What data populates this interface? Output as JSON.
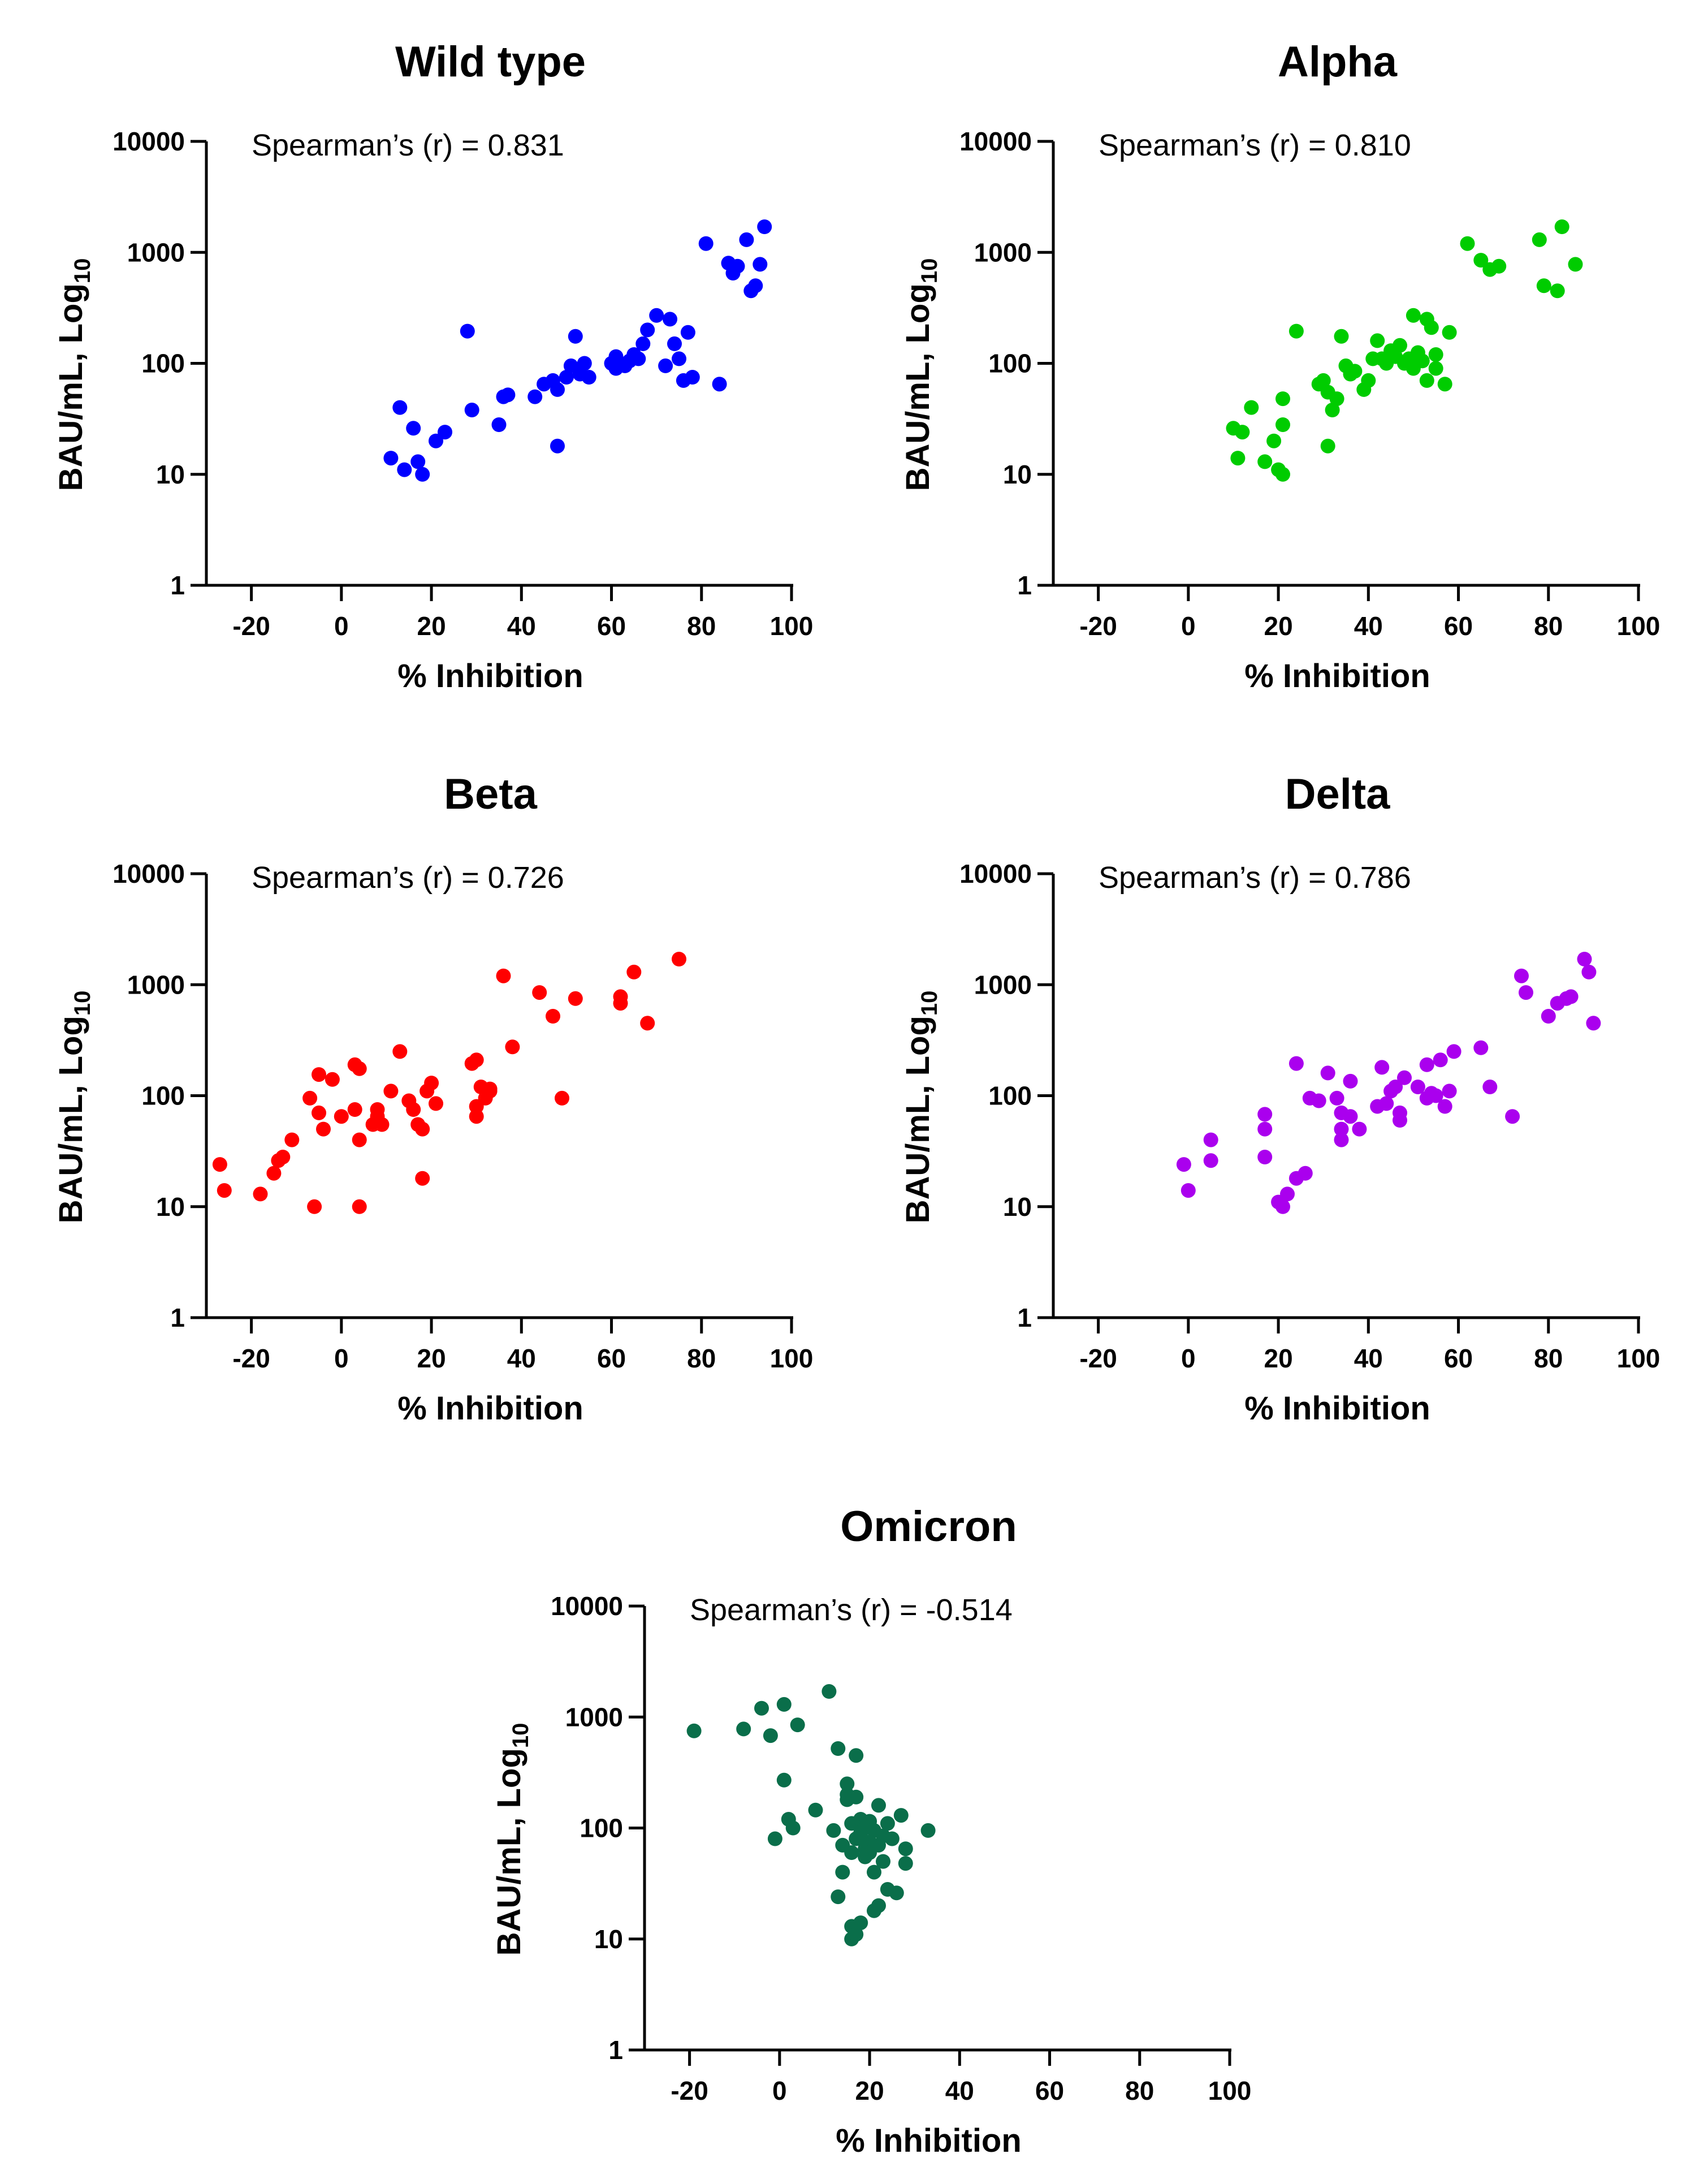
{
  "chart_data": [
    {
      "type": "scatter",
      "title": "Wild type",
      "xlabel": "% Inhibition",
      "ylabel": "BAU/mL, Log10",
      "annotation": "Spearman’s (r) = 0.831",
      "color": "#0000ff",
      "xlim": [
        -30,
        100
      ],
      "ylim": [
        1,
        10000
      ],
      "y_scale": "log",
      "x_ticks": [
        -20,
        0,
        20,
        40,
        60,
        80,
        100
      ],
      "y_ticks": [
        1,
        10,
        100,
        1000,
        10000
      ],
      "grid": false,
      "points": [
        {
          "x": 11,
          "y": 14
        },
        {
          "x": 13,
          "y": 40
        },
        {
          "x": 14,
          "y": 11
        },
        {
          "x": 16,
          "y": 26
        },
        {
          "x": 17,
          "y": 13
        },
        {
          "x": 18,
          "y": 10
        },
        {
          "x": 21,
          "y": 20
        },
        {
          "x": 23,
          "y": 24
        },
        {
          "x": 28,
          "y": 195
        },
        {
          "x": 29,
          "y": 38
        },
        {
          "x": 35,
          "y": 28
        },
        {
          "x": 36,
          "y": 50
        },
        {
          "x": 37,
          "y": 52
        },
        {
          "x": 43,
          "y": 50
        },
        {
          "x": 45,
          "y": 65
        },
        {
          "x": 47,
          "y": 70
        },
        {
          "x": 48,
          "y": 18
        },
        {
          "x": 48,
          "y": 58
        },
        {
          "x": 50,
          "y": 75
        },
        {
          "x": 51,
          "y": 95
        },
        {
          "x": 52,
          "y": 175
        },
        {
          "x": 53,
          "y": 80
        },
        {
          "x": 54,
          "y": 100
        },
        {
          "x": 55,
          "y": 75
        },
        {
          "x": 60,
          "y": 100
        },
        {
          "x": 61,
          "y": 90
        },
        {
          "x": 61,
          "y": 115
        },
        {
          "x": 63,
          "y": 95
        },
        {
          "x": 64,
          "y": 105
        },
        {
          "x": 65,
          "y": 120
        },
        {
          "x": 66,
          "y": 110
        },
        {
          "x": 67,
          "y": 150
        },
        {
          "x": 68,
          "y": 200
        },
        {
          "x": 70,
          "y": 270
        },
        {
          "x": 72,
          "y": 95
        },
        {
          "x": 73,
          "y": 250
        },
        {
          "x": 74,
          "y": 150
        },
        {
          "x": 75,
          "y": 110
        },
        {
          "x": 76,
          "y": 70
        },
        {
          "x": 77,
          "y": 190
        },
        {
          "x": 78,
          "y": 75
        },
        {
          "x": 81,
          "y": 1200
        },
        {
          "x": 84,
          "y": 65
        },
        {
          "x": 86,
          "y": 800
        },
        {
          "x": 87,
          "y": 650
        },
        {
          "x": 88,
          "y": 750
        },
        {
          "x": 90,
          "y": 1300
        },
        {
          "x": 91,
          "y": 450
        },
        {
          "x": 92,
          "y": 500
        },
        {
          "x": 93,
          "y": 780
        },
        {
          "x": 94,
          "y": 1700
        }
      ]
    },
    {
      "type": "scatter",
      "title": "Alpha",
      "xlabel": "% Inhibition",
      "ylabel": "BAU/mL, Log10",
      "annotation": "Spearman’s (r) = 0.810",
      "color": "#00cc00",
      "xlim": [
        -30,
        100
      ],
      "ylim": [
        1,
        10000
      ],
      "y_scale": "log",
      "x_ticks": [
        -20,
        0,
        20,
        40,
        60,
        80,
        100
      ],
      "y_ticks": [
        1,
        10,
        100,
        1000,
        10000
      ],
      "grid": false,
      "points": [
        {
          "x": 10,
          "y": 26
        },
        {
          "x": 11,
          "y": 14
        },
        {
          "x": 12,
          "y": 24
        },
        {
          "x": 14,
          "y": 40
        },
        {
          "x": 17,
          "y": 13
        },
        {
          "x": 19,
          "y": 20
        },
        {
          "x": 20,
          "y": 11
        },
        {
          "x": 21,
          "y": 10
        },
        {
          "x": 21,
          "y": 28
        },
        {
          "x": 21,
          "y": 48
        },
        {
          "x": 24,
          "y": 195
        },
        {
          "x": 29,
          "y": 65
        },
        {
          "x": 30,
          "y": 70
        },
        {
          "x": 31,
          "y": 18
        },
        {
          "x": 31,
          "y": 55
        },
        {
          "x": 32,
          "y": 38
        },
        {
          "x": 33,
          "y": 48
        },
        {
          "x": 34,
          "y": 175
        },
        {
          "x": 35,
          "y": 95
        },
        {
          "x": 36,
          "y": 80
        },
        {
          "x": 37,
          "y": 85
        },
        {
          "x": 39,
          "y": 58
        },
        {
          "x": 40,
          "y": 70
        },
        {
          "x": 41,
          "y": 110
        },
        {
          "x": 42,
          "y": 160
        },
        {
          "x": 43,
          "y": 110
        },
        {
          "x": 44,
          "y": 100
        },
        {
          "x": 45,
          "y": 130
        },
        {
          "x": 46,
          "y": 115
        },
        {
          "x": 47,
          "y": 145
        },
        {
          "x": 48,
          "y": 100
        },
        {
          "x": 49,
          "y": 110
        },
        {
          "x": 50,
          "y": 270
        },
        {
          "x": 50,
          "y": 90
        },
        {
          "x": 51,
          "y": 125
        },
        {
          "x": 52,
          "y": 105
        },
        {
          "x": 53,
          "y": 250
        },
        {
          "x": 53,
          "y": 70
        },
        {
          "x": 54,
          "y": 210
        },
        {
          "x": 55,
          "y": 120
        },
        {
          "x": 55,
          "y": 90
        },
        {
          "x": 57,
          "y": 65
        },
        {
          "x": 58,
          "y": 190
        },
        {
          "x": 62,
          "y": 1200
        },
        {
          "x": 65,
          "y": 850
        },
        {
          "x": 67,
          "y": 700
        },
        {
          "x": 69,
          "y": 750
        },
        {
          "x": 78,
          "y": 1300
        },
        {
          "x": 79,
          "y": 500
        },
        {
          "x": 82,
          "y": 450
        },
        {
          "x": 83,
          "y": 1700
        },
        {
          "x": 86,
          "y": 780
        }
      ]
    },
    {
      "type": "scatter",
      "title": "Beta",
      "xlabel": "% Inhibition",
      "ylabel": "BAU/mL, Log10",
      "annotation": "Spearman’s (r) = 0.726",
      "color": "#ff0000",
      "xlim": [
        -30,
        100
      ],
      "ylim": [
        1,
        10000
      ],
      "y_scale": "log",
      "x_ticks": [
        -20,
        0,
        20,
        40,
        60,
        80,
        100
      ],
      "y_ticks": [
        1,
        10,
        100,
        1000,
        10000
      ],
      "grid": false,
      "points": [
        {
          "x": -27,
          "y": 24
        },
        {
          "x": -26,
          "y": 14
        },
        {
          "x": -18,
          "y": 13
        },
        {
          "x": -15,
          "y": 20
        },
        {
          "x": -14,
          "y": 26
        },
        {
          "x": -13,
          "y": 28
        },
        {
          "x": -11,
          "y": 40
        },
        {
          "x": -7,
          "y": 95
        },
        {
          "x": -6,
          "y": 10
        },
        {
          "x": -5,
          "y": 155
        },
        {
          "x": -5,
          "y": 70
        },
        {
          "x": -4,
          "y": 50
        },
        {
          "x": -2,
          "y": 140
        },
        {
          "x": 0,
          "y": 65
        },
        {
          "x": 3,
          "y": 190
        },
        {
          "x": 3,
          "y": 75
        },
        {
          "x": 4,
          "y": 175
        },
        {
          "x": 4,
          "y": 10
        },
        {
          "x": 4,
          "y": 40
        },
        {
          "x": 7,
          "y": 55
        },
        {
          "x": 8,
          "y": 75
        },
        {
          "x": 8,
          "y": 65
        },
        {
          "x": 9,
          "y": 55
        },
        {
          "x": 11,
          "y": 110
        },
        {
          "x": 13,
          "y": 250
        },
        {
          "x": 15,
          "y": 90
        },
        {
          "x": 16,
          "y": 75
        },
        {
          "x": 17,
          "y": 55
        },
        {
          "x": 18,
          "y": 50
        },
        {
          "x": 18,
          "y": 18
        },
        {
          "x": 19,
          "y": 110
        },
        {
          "x": 20,
          "y": 130
        },
        {
          "x": 21,
          "y": 85
        },
        {
          "x": 29,
          "y": 195
        },
        {
          "x": 30,
          "y": 210
        },
        {
          "x": 30,
          "y": 80
        },
        {
          "x": 30,
          "y": 65
        },
        {
          "x": 31,
          "y": 120
        },
        {
          "x": 32,
          "y": 95
        },
        {
          "x": 33,
          "y": 115
        },
        {
          "x": 33,
          "y": 110
        },
        {
          "x": 36,
          "y": 1200
        },
        {
          "x": 38,
          "y": 275
        },
        {
          "x": 44,
          "y": 850
        },
        {
          "x": 47,
          "y": 520
        },
        {
          "x": 49,
          "y": 95
        },
        {
          "x": 52,
          "y": 750
        },
        {
          "x": 62,
          "y": 780
        },
        {
          "x": 62,
          "y": 680
        },
        {
          "x": 65,
          "y": 1300
        },
        {
          "x": 68,
          "y": 450
        },
        {
          "x": 75,
          "y": 1700
        }
      ]
    },
    {
      "type": "scatter",
      "title": "Delta",
      "xlabel": "% Inhibition",
      "ylabel": "BAU/mL, Log10",
      "annotation": "Spearman’s (r) = 0.786",
      "color": "#aa00ee",
      "xlim": [
        -30,
        100
      ],
      "ylim": [
        1,
        10000
      ],
      "y_scale": "log",
      "x_ticks": [
        -20,
        0,
        20,
        40,
        60,
        80,
        100
      ],
      "y_ticks": [
        1,
        10,
        100,
        1000,
        10000
      ],
      "grid": false,
      "points": [
        {
          "x": -1,
          "y": 24
        },
        {
          "x": 0,
          "y": 14
        },
        {
          "x": 5,
          "y": 26
        },
        {
          "x": 5,
          "y": 40
        },
        {
          "x": 17,
          "y": 68
        },
        {
          "x": 17,
          "y": 50
        },
        {
          "x": 17,
          "y": 28
        },
        {
          "x": 20,
          "y": 11
        },
        {
          "x": 21,
          "y": 10
        },
        {
          "x": 22,
          "y": 13
        },
        {
          "x": 24,
          "y": 195
        },
        {
          "x": 24,
          "y": 18
        },
        {
          "x": 26,
          "y": 20
        },
        {
          "x": 27,
          "y": 95
        },
        {
          "x": 29,
          "y": 90
        },
        {
          "x": 31,
          "y": 160
        },
        {
          "x": 33,
          "y": 95
        },
        {
          "x": 34,
          "y": 70
        },
        {
          "x": 34,
          "y": 50
        },
        {
          "x": 34,
          "y": 40
        },
        {
          "x": 36,
          "y": 135
        },
        {
          "x": 36,
          "y": 65
        },
        {
          "x": 38,
          "y": 50
        },
        {
          "x": 42,
          "y": 80
        },
        {
          "x": 43,
          "y": 180
        },
        {
          "x": 44,
          "y": 85
        },
        {
          "x": 45,
          "y": 110
        },
        {
          "x": 46,
          "y": 120
        },
        {
          "x": 47,
          "y": 70
        },
        {
          "x": 47,
          "y": 60
        },
        {
          "x": 48,
          "y": 145
        },
        {
          "x": 51,
          "y": 120
        },
        {
          "x": 53,
          "y": 190
        },
        {
          "x": 53,
          "y": 95
        },
        {
          "x": 54,
          "y": 105
        },
        {
          "x": 55,
          "y": 100
        },
        {
          "x": 56,
          "y": 210
        },
        {
          "x": 57,
          "y": 80
        },
        {
          "x": 58,
          "y": 110
        },
        {
          "x": 59,
          "y": 250
        },
        {
          "x": 65,
          "y": 270
        },
        {
          "x": 67,
          "y": 120
        },
        {
          "x": 72,
          "y": 65
        },
        {
          "x": 74,
          "y": 1200
        },
        {
          "x": 75,
          "y": 850
        },
        {
          "x": 80,
          "y": 520
        },
        {
          "x": 82,
          "y": 680
        },
        {
          "x": 84,
          "y": 750
        },
        {
          "x": 85,
          "y": 780
        },
        {
          "x": 88,
          "y": 1700
        },
        {
          "x": 89,
          "y": 1300
        },
        {
          "x": 90,
          "y": 450
        }
      ]
    },
    {
      "type": "scatter",
      "title": "Omicron",
      "xlabel": "% Inhibition",
      "ylabel": "BAU/mL, Log10",
      "annotation": "Spearman’s (r) = -0.514",
      "color": "#0a6e4a",
      "xlim": [
        -30,
        100
      ],
      "ylim": [
        1,
        10000
      ],
      "y_scale": "log",
      "x_ticks": [
        -20,
        0,
        20,
        40,
        60,
        80,
        100
      ],
      "y_ticks": [
        1,
        10,
        100,
        1000,
        10000
      ],
      "grid": false,
      "points": [
        {
          "x": -19,
          "y": 750
        },
        {
          "x": -8,
          "y": 780
        },
        {
          "x": -4,
          "y": 1200
        },
        {
          "x": -2,
          "y": 680
        },
        {
          "x": -1,
          "y": 80
        },
        {
          "x": 1,
          "y": 1300
        },
        {
          "x": 1,
          "y": 270
        },
        {
          "x": 2,
          "y": 120
        },
        {
          "x": 3,
          "y": 100
        },
        {
          "x": 4,
          "y": 850
        },
        {
          "x": 8,
          "y": 145
        },
        {
          "x": 11,
          "y": 1700
        },
        {
          "x": 12,
          "y": 95
        },
        {
          "x": 13,
          "y": 520
        },
        {
          "x": 13,
          "y": 24
        },
        {
          "x": 14,
          "y": 70
        },
        {
          "x": 14,
          "y": 40
        },
        {
          "x": 15,
          "y": 200
        },
        {
          "x": 15,
          "y": 180
        },
        {
          "x": 15,
          "y": 250
        },
        {
          "x": 16,
          "y": 110
        },
        {
          "x": 16,
          "y": 60
        },
        {
          "x": 16,
          "y": 13
        },
        {
          "x": 16,
          "y": 10
        },
        {
          "x": 17,
          "y": 450
        },
        {
          "x": 17,
          "y": 190
        },
        {
          "x": 17,
          "y": 80
        },
        {
          "x": 17,
          "y": 11
        },
        {
          "x": 18,
          "y": 120
        },
        {
          "x": 18,
          "y": 90
        },
        {
          "x": 18,
          "y": 14
        },
        {
          "x": 19,
          "y": 105
        },
        {
          "x": 19,
          "y": 65
        },
        {
          "x": 19,
          "y": 55
        },
        {
          "x": 20,
          "y": 115
        },
        {
          "x": 20,
          "y": 75
        },
        {
          "x": 20,
          "y": 60
        },
        {
          "x": 21,
          "y": 95
        },
        {
          "x": 21,
          "y": 40
        },
        {
          "x": 21,
          "y": 18
        },
        {
          "x": 22,
          "y": 160
        },
        {
          "x": 22,
          "y": 70
        },
        {
          "x": 22,
          "y": 20
        },
        {
          "x": 23,
          "y": 85
        },
        {
          "x": 23,
          "y": 50
        },
        {
          "x": 24,
          "y": 110
        },
        {
          "x": 24,
          "y": 28
        },
        {
          "x": 25,
          "y": 80
        },
        {
          "x": 26,
          "y": 26
        },
        {
          "x": 27,
          "y": 130
        },
        {
          "x": 28,
          "y": 65
        },
        {
          "x": 28,
          "y": 48
        },
        {
          "x": 33,
          "y": 95
        }
      ]
    }
  ]
}
